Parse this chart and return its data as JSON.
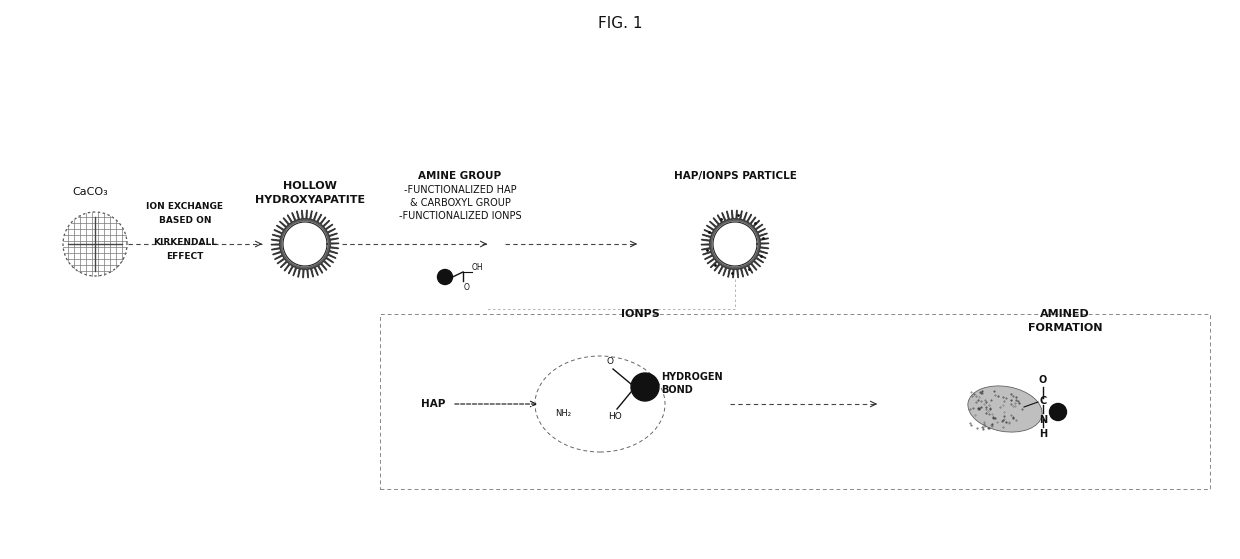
{
  "title": "FIG. 1",
  "bg_color": "#ffffff",
  "text_color": "#111111",
  "fig_width": 12.4,
  "fig_height": 5.59,
  "labels": {
    "caco3": "CaCO₃",
    "hollow_hap_line1": "HOLLOW",
    "hollow_hap_line2": "HYDROXYAPATITE",
    "amine_group_line1": "AMINE GROUP",
    "amine_group_line2": "-FUNCTIONALIZED HAP",
    "amine_group_line3": "& CARBOXYL GROUP",
    "amine_group_line4": "-FUNCTIONALIZED IONPS",
    "hap_ionps": "HAP/IONPS PARTICLE",
    "ion_exchange_line1": "ION EXCHANGE",
    "ion_exchange_line2": "BASED ON",
    "ion_exchange_line3": "KIRKENDALL",
    "ion_exchange_line4": "EFFECT",
    "ionps": "IONPS",
    "hydrogen_bond_1": "HYDROGEN",
    "hydrogen_bond_2": "BOND",
    "hap_label": "HAP",
    "nh2": "NH₂",
    "amined_line1": "AMINED",
    "amined_line2": "FORMATION",
    "oh_label": "OH",
    "o_label": "O",
    "ho_label": "HO",
    "c_label": "C",
    "n_label": "N",
    "h_label": "H"
  }
}
